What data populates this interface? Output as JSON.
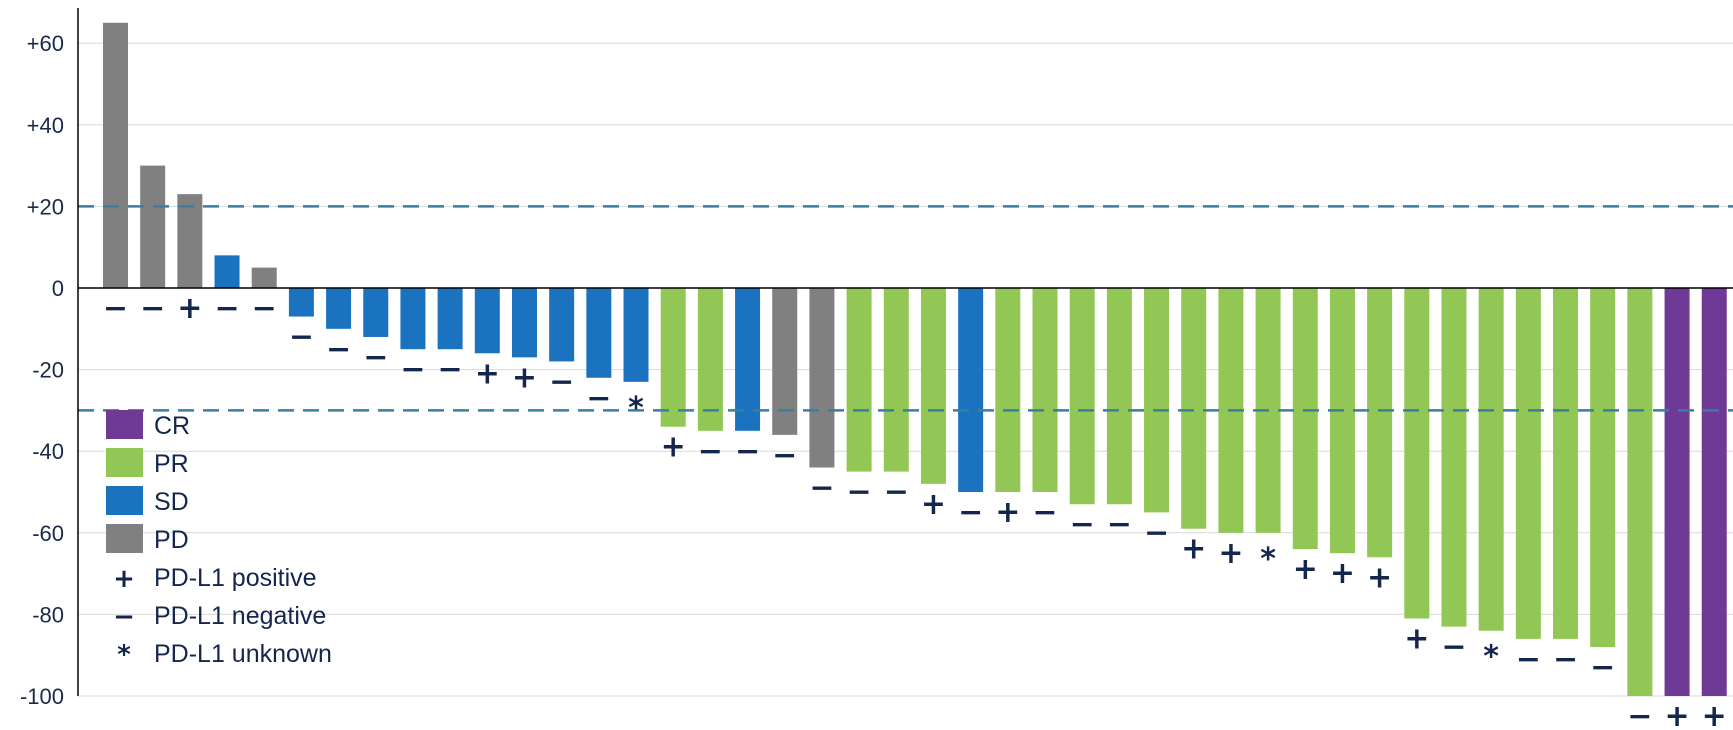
{
  "chart_data": {
    "type": "bar",
    "title": "",
    "xlabel": "",
    "ylabel": "",
    "ylim": [
      -100,
      68
    ],
    "y_ticks": [
      {
        "value": 60,
        "label": "+60"
      },
      {
        "value": 40,
        "label": "+40"
      },
      {
        "value": 20,
        "label": "+20"
      },
      {
        "value": 0,
        "label": "0"
      },
      {
        "value": -20,
        "label": "-20"
      },
      {
        "value": -40,
        "label": "-40"
      },
      {
        "value": -60,
        "label": "-60"
      },
      {
        "value": -80,
        "label": "-80"
      },
      {
        "value": -100,
        "label": "-100"
      }
    ],
    "grid": true,
    "reference_lines": [
      20,
      -30
    ],
    "status_colors": {
      "CR": "#6f3a96",
      "PR": "#92c755",
      "SD": "#1b72be",
      "PD": "#808080"
    },
    "marker_symbols": {
      "positive": "+",
      "negative": "−",
      "unknown": "*"
    },
    "values": [
      65,
      30,
      23,
      8,
      5,
      -7,
      -10,
      -12,
      -15,
      -15,
      -16,
      -17,
      -18,
      -22,
      -23,
      -34,
      -35,
      -35,
      -36,
      -44,
      -45,
      -45,
      -48,
      -50,
      -50,
      -50,
      -53,
      -53,
      -55,
      -59,
      -60,
      -60,
      -64,
      -65,
      -66,
      -81,
      -83,
      -84,
      -86,
      -86,
      -88,
      -100,
      -100,
      -100
    ],
    "status": [
      "PD",
      "PD",
      "PD",
      "SD",
      "PD",
      "SD",
      "SD",
      "SD",
      "SD",
      "SD",
      "SD",
      "SD",
      "SD",
      "SD",
      "SD",
      "PR",
      "PR",
      "SD",
      "PD",
      "PD",
      "PR",
      "PR",
      "PR",
      "SD",
      "PR",
      "PR",
      "PR",
      "PR",
      "PR",
      "PR",
      "PR",
      "PR",
      "PR",
      "PR",
      "PR",
      "PR",
      "PR",
      "PR",
      "PR",
      "PR",
      "PR",
      "PR",
      "CR",
      "CR"
    ],
    "pdl1": [
      "negative",
      "negative",
      "positive",
      "negative",
      "negative",
      "negative",
      "negative",
      "negative",
      "negative",
      "negative",
      "positive",
      "positive",
      "negative",
      "negative",
      "unknown",
      "positive",
      "negative",
      "negative",
      "negative",
      "negative",
      "negative",
      "negative",
      "positive",
      "negative",
      "positive",
      "negative",
      "negative",
      "negative",
      "negative",
      "positive",
      "positive",
      "unknown",
      "positive",
      "positive",
      "positive",
      "positive",
      "negative",
      "unknown",
      "negative",
      "negative",
      "negative",
      "negative",
      "positive",
      "positive"
    ],
    "legend": [
      {
        "kind": "swatch",
        "key": "CR",
        "label": "CR"
      },
      {
        "kind": "swatch",
        "key": "PR",
        "label": "PR"
      },
      {
        "kind": "swatch",
        "key": "SD",
        "label": "SD"
      },
      {
        "kind": "swatch",
        "key": "PD",
        "label": "PD"
      },
      {
        "kind": "symbol",
        "key": "positive",
        "label": "PD-L1 positive"
      },
      {
        "kind": "symbol",
        "key": "negative",
        "label": "PD-L1 negative"
      },
      {
        "kind": "symbol",
        "key": "unknown",
        "label": "PD-L1 unknown"
      }
    ],
    "legend_position": "left"
  }
}
